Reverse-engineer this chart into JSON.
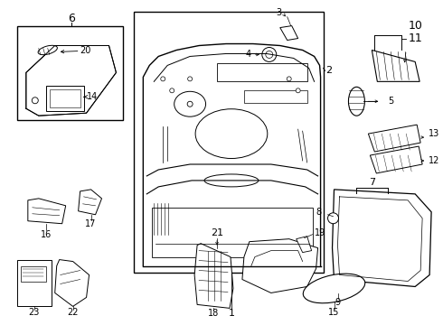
{
  "background_color": "#ffffff",
  "line_color": "#000000",
  "fig_w": 4.9,
  "fig_h": 3.6,
  "dpi": 100
}
